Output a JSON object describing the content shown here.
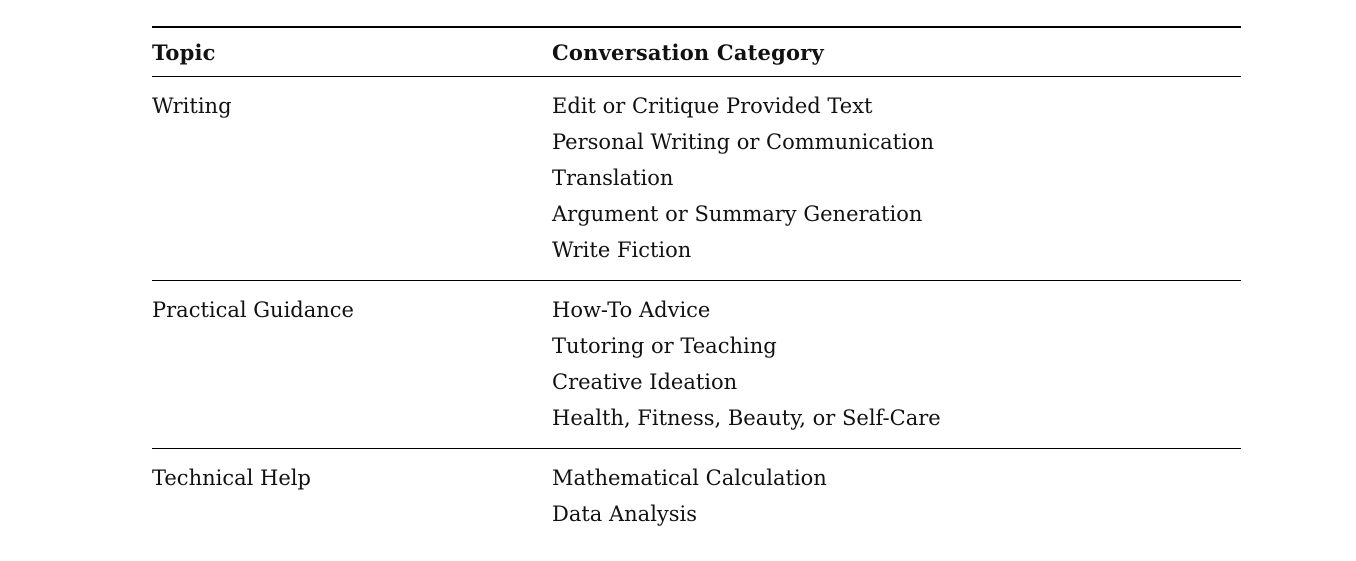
{
  "table": {
    "header": {
      "topic": "Topic",
      "category": "Conversation Category"
    },
    "groups": [
      {
        "topic": "Writing",
        "categories": [
          "Edit or Critique Provided Text",
          "Personal Writing or Communication",
          "Translation",
          "Argument or Summary Generation",
          "Write Fiction"
        ]
      },
      {
        "topic": "Practical Guidance",
        "categories": [
          "How-To Advice",
          "Tutoring or Teaching",
          "Creative Ideation",
          "Health, Fitness, Beauty, or Self-Care"
        ]
      },
      {
        "topic": "Technical Help",
        "categories": [
          "Mathematical Calculation",
          "Data Analysis"
        ]
      }
    ]
  }
}
